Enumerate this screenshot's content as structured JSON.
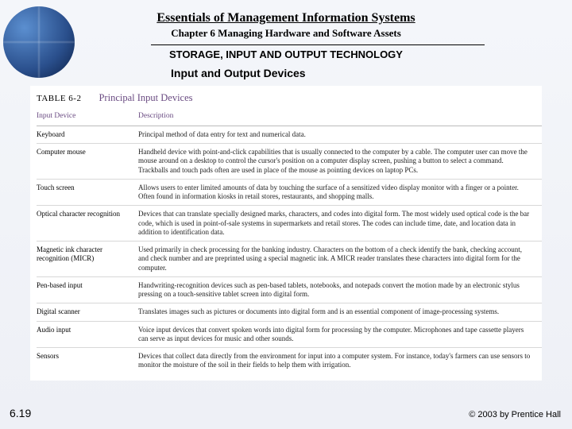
{
  "header": {
    "book_title": "Essentials of Management Information Systems",
    "chapter_title": "Chapter 6 Managing Hardware and Software Assets"
  },
  "section": {
    "title": "STORAGE, INPUT AND OUTPUT TECHNOLOGY",
    "subtitle": "Input and Output Devices"
  },
  "table": {
    "label": "TABLE 6-2",
    "title": "Principal Input Devices",
    "columns": [
      "Input Device",
      "Description"
    ],
    "rows": [
      {
        "device": "Keyboard",
        "desc": "Principal method of data entry for text and numerical data."
      },
      {
        "device": "Computer mouse",
        "desc": "Handheld device with point-and-click capabilities that is usually connected to the computer by a cable. The computer user can move the mouse around on a desktop to control the cursor's position on a computer display screen, pushing a button to select a command. Trackballs and touch pads often are used in place of the mouse as pointing devices on laptop PCs."
      },
      {
        "device": "Touch screen",
        "desc": "Allows users to enter limited amounts of data by touching the surface of a sensitized video display monitor with a finger or a pointer. Often found in information kiosks in retail stores, restaurants, and shopping malls."
      },
      {
        "device": "Optical character recognition",
        "desc": "Devices that can translate specially designed marks, characters, and codes into digital form. The most widely used optical code is the bar code, which is used in point-of-sale systems in supermarkets and retail stores. The codes can include time, date, and location data in addition to identification data."
      },
      {
        "device": "Magnetic ink character recognition (MICR)",
        "desc": "Used primarily in check processing for the banking industry. Characters on the bottom of a check identify the bank, checking account, and check number and are preprinted using a special magnetic ink. A MICR reader translates these characters into digital form for the computer."
      },
      {
        "device": "Pen-based input",
        "desc": "Handwriting-recognition devices such as pen-based tablets, notebooks, and notepads convert the motion made by an electronic stylus pressing on a touch-sensitive tablet screen into digital form."
      },
      {
        "device": "Digital scanner",
        "desc": "Translates images such as pictures or documents into digital form and is an essential component of image-processing systems."
      },
      {
        "device": "Audio input",
        "desc": "Voice input devices that convert spoken words into digital form for processing by the computer. Microphones and tape cassette players can serve as input devices for music and other sounds."
      },
      {
        "device": "Sensors",
        "desc": "Devices that collect data directly from the environment for input into a computer system. For instance, today's farmers can use sensors to monitor the moisture of the soil in their fields to help them with irrigation."
      }
    ]
  },
  "footer": {
    "slide_number": "6.19",
    "copyright": "© 2003 by Prentice Hall"
  }
}
